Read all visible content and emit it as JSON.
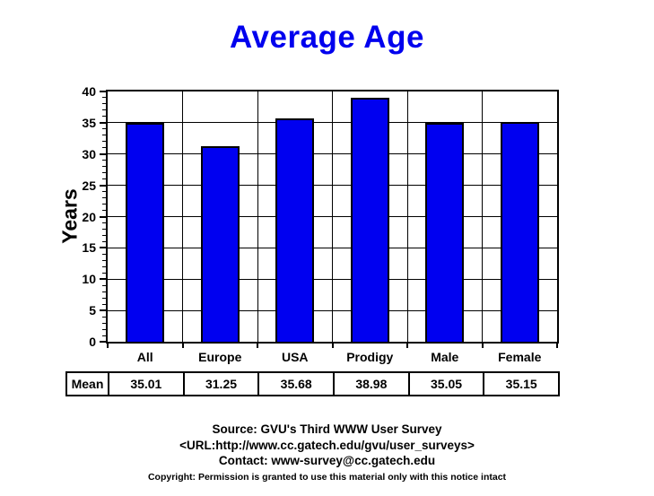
{
  "chart_data": {
    "type": "bar",
    "title": "Average Age",
    "title_color": "#0000EE",
    "bar_color": "#0000F0",
    "categories": [
      "All",
      "Europe",
      "USA",
      "Prodigy",
      "Male",
      "Female"
    ],
    "values": [
      35.01,
      31.25,
      35.68,
      38.98,
      35.05,
      35.15
    ],
    "xlabel": "",
    "ylabel": "Years",
    "ylim": [
      0,
      40
    ],
    "yticks": [
      0,
      5,
      10,
      15,
      20,
      25,
      30,
      35,
      40
    ],
    "ytick_minor_step": 1,
    "grid": true,
    "legend": "none",
    "table": {
      "row_label": "Mean",
      "values": [
        "35.01",
        "31.25",
        "35.68",
        "38.98",
        "35.05",
        "35.15"
      ]
    }
  },
  "footer": {
    "source_line": "Source: GVU's Third WWW User Survey",
    "url_line": "<URL:http://www.cc.gatech.edu/gvu/user_surveys>",
    "contact_line": "Contact: www-survey@cc.gatech.edu",
    "copyright_line": "Copyright: Permission is granted to use this material only with this notice intact"
  }
}
